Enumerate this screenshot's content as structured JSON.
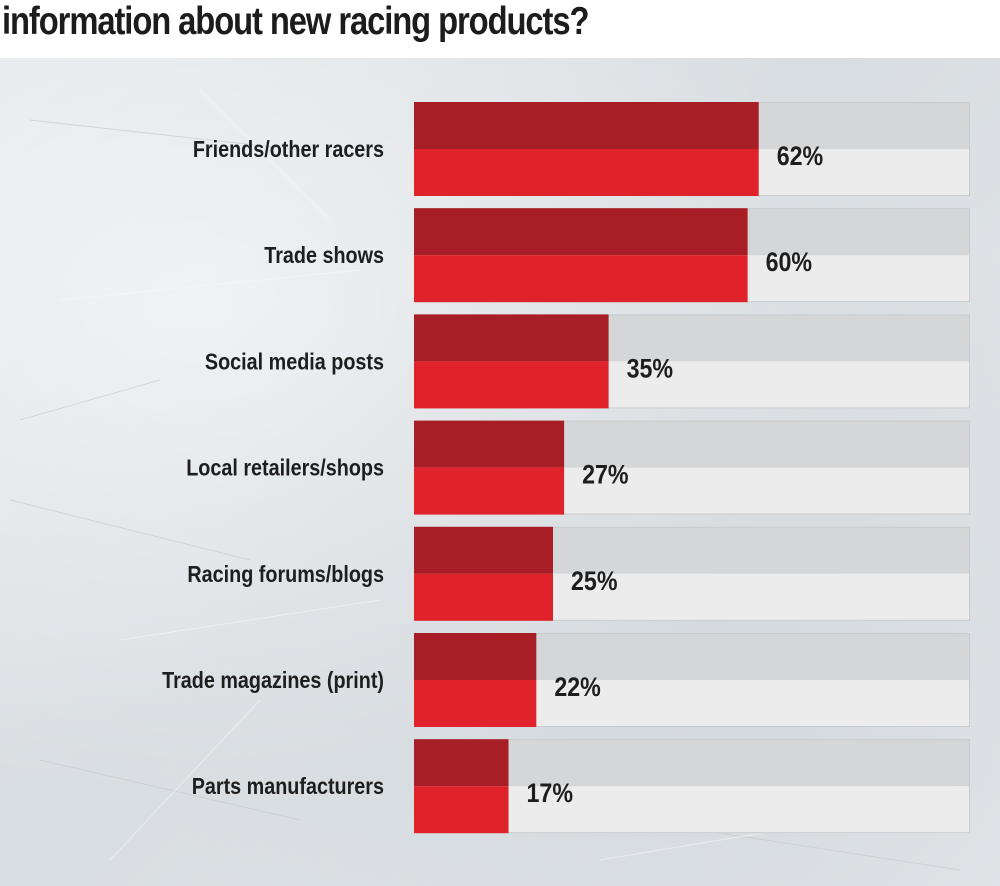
{
  "title": "information about new racing products?",
  "colors": {
    "bar_dark": "#a81e26",
    "bar_light": "#e0222a",
    "track_top": "#d4d6d8",
    "track_bottom": "#ececed",
    "track_border": "#c8cbcd",
    "text": "#1e1e1e"
  },
  "chart_data": {
    "type": "bar",
    "orientation": "horizontal",
    "title": "information about new racing products?",
    "categories": [
      "Friends/other racers",
      "Trade shows",
      "Social media posts",
      "Local retailers/shops",
      "Racing forums/blogs",
      "Trade magazines (print)",
      "Parts manufacturers"
    ],
    "values": [
      62,
      60,
      35,
      27,
      25,
      22,
      17
    ],
    "value_labels": [
      "62%",
      "60%",
      "35%",
      "27%",
      "25%",
      "22%",
      "17%"
    ],
    "xlim": [
      0,
      100
    ],
    "grid": false,
    "legend": "none"
  }
}
